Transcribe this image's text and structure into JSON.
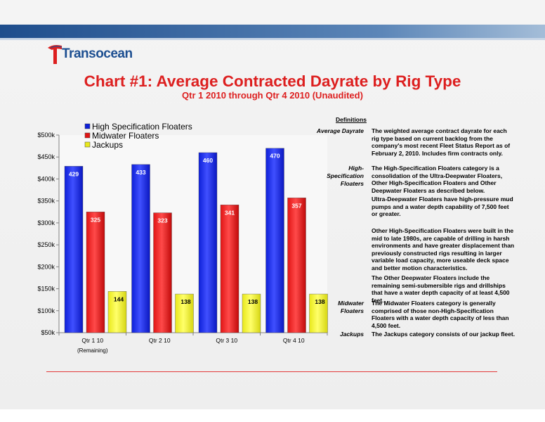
{
  "header": {
    "logo_text": "Transocean",
    "title": "Chart #1: Average Contracted Dayrate by Rig Type",
    "subtitle": "Qtr 1 2010 through Qtr 4 2010 (Unaudited)"
  },
  "colors": {
    "high_spec": "#0d1fd8",
    "midwater": "#e01414",
    "jackups": "#e8e81a",
    "title_red": "#dd1f1f",
    "brand_blue": "#1d4f91"
  },
  "chart_data": {
    "type": "bar",
    "categories": [
      "Qtr 1 10",
      "Qtr 2 10",
      "Qtr 3 10",
      "Qtr 4 10"
    ],
    "category_note": "(Remaining)",
    "series": [
      {
        "name": "High Specification Floaters",
        "values": [
          429,
          433,
          460,
          470
        ],
        "color": "#0d1fd8"
      },
      {
        "name": "Midwater Floaters",
        "values": [
          325,
          323,
          341,
          357
        ],
        "color": "#e01414"
      },
      {
        "name": "Jackups",
        "values": [
          144,
          138,
          138,
          138
        ],
        "color": "#e8e81a"
      }
    ],
    "ylim": [
      50,
      500
    ],
    "yticks": [
      50,
      100,
      150,
      200,
      250,
      300,
      350,
      400,
      450,
      500
    ],
    "ytick_labels": [
      "$50k",
      "$100k",
      "$150k",
      "$200k",
      "$250k",
      "$300k",
      "$350k",
      "$400k",
      "$450k",
      "$500k"
    ],
    "legend_position": "top-left",
    "grid": false
  },
  "definitions": {
    "heading": "Definitions",
    "items": [
      {
        "term": "Average Dayrate",
        "text": "The weighted average contract dayrate for each rig type based on current backlog from the company's most recent Fleet Status Report as of February 2, 2010. Includes firm contracts only."
      },
      {
        "term": "High-Specification Floaters",
        "text": "The High-Specification Floaters category is a consolidation of the Ultra-Deepwater Floaters, Other High-Specification Floaters and Other Deepwater Floaters as described below."
      },
      {
        "term": "",
        "text": "Ultra-Deepwater Floaters have high-pressure mud pumps and a water depth capability of 7,500 feet or greater."
      },
      {
        "term": "",
        "text": "Other High-Specification Floaters were built in the mid to late 1980s, are capable of drilling in harsh environments and have greater displacement than previously constructed rigs resulting in larger variable load capacity, more useable deck space and better motion characteristics."
      },
      {
        "term": "",
        "text": "The Other Deepwater Floaters include the remaining semi-submersible rigs and drillships that have a water depth capacity of at least 4,500 feet."
      },
      {
        "term": "Midwater Floaters",
        "text": "The Midwater Floaters category is generally comprised of those non-High-Specification Floaters with a water depth capacity of less than 4,500 feet."
      },
      {
        "term": "Jackups",
        "text": "The Jackups category consists of our jackup fleet."
      }
    ]
  }
}
